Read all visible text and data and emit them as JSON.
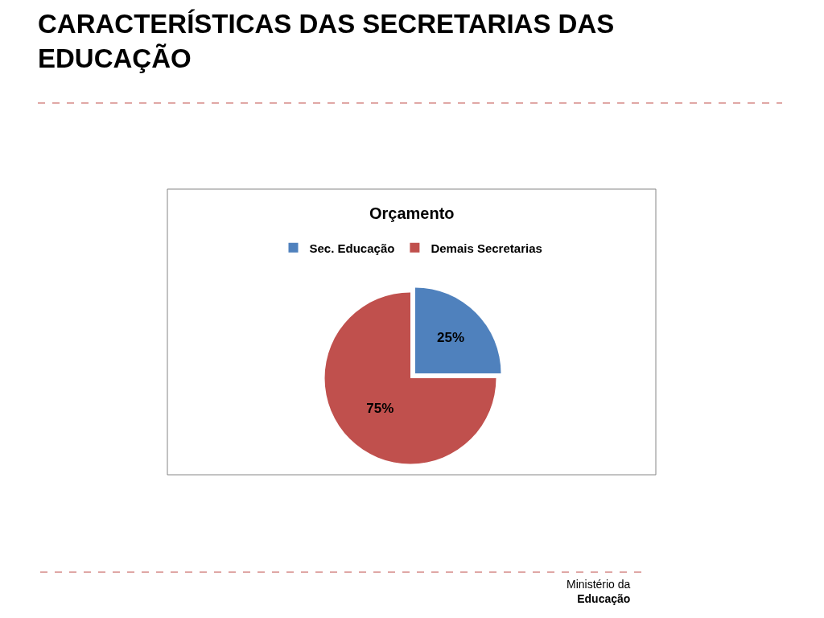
{
  "chart_data": {
    "type": "pie",
    "title": "CARACTERÍSTICAS DAS SECRETARIAS DAS\nEDUCAÇÃO",
    "subtitle": "Orçamento",
    "categories": [
      "Sec. Educação",
      "Demais Secretarias"
    ],
    "values": [
      25,
      75
    ],
    "colors": [
      "#4f81bd",
      "#c0504d"
    ],
    "value_labels": [
      "25%",
      "75%"
    ],
    "legend": "top",
    "annotations": [
      "Ministério da\nEducação"
    ]
  }
}
